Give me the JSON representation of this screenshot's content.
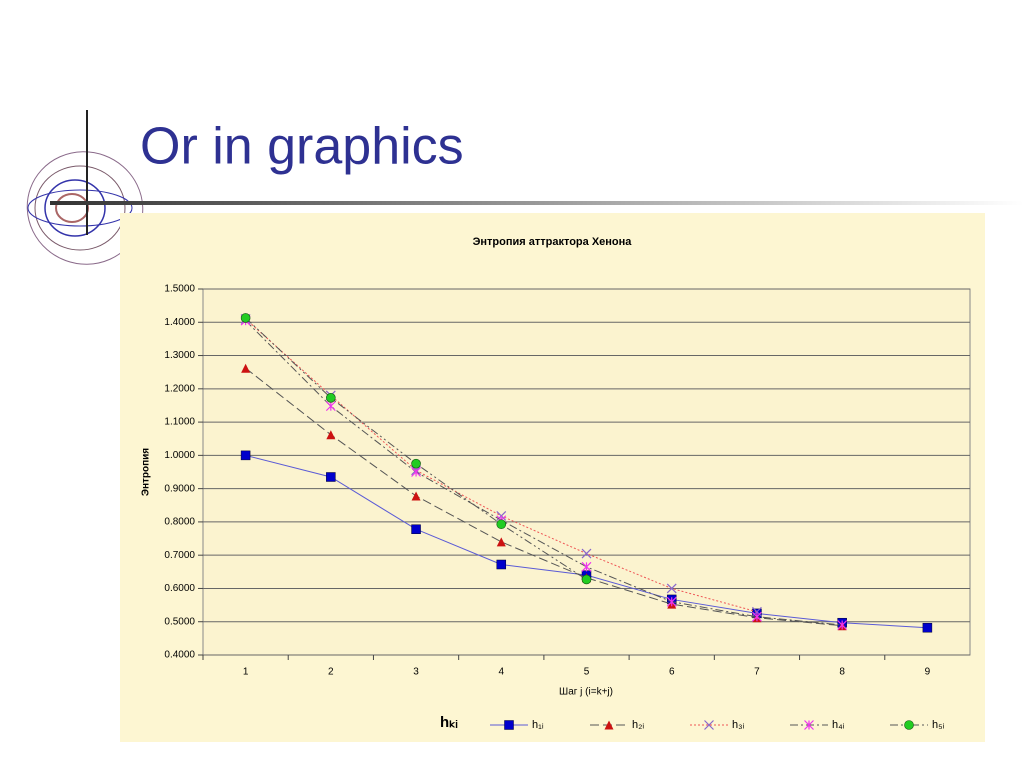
{
  "slide_title": "Or in graphics",
  "chart_data": {
    "type": "line",
    "title": "Энтропия аттрактора Хенона",
    "x_label": "Шаг j (i=k+j)",
    "y_label": "Энтропия",
    "categories": [
      "1",
      "2",
      "3",
      "4",
      "5",
      "6",
      "7",
      "8",
      "9"
    ],
    "ylim": [
      0.4,
      1.5
    ],
    "yticks": [
      {
        "value": 0.4,
        "label": "0.4000"
      },
      {
        "value": 0.5,
        "label": "0.5000"
      },
      {
        "value": 0.6,
        "label": "0.6000"
      },
      {
        "value": 0.7,
        "label": "0.7000"
      },
      {
        "value": 0.8,
        "label": "0.8000"
      },
      {
        "value": 0.9,
        "label": "0.9000"
      },
      {
        "value": 1.0,
        "label": "1.0000"
      },
      {
        "value": 1.1,
        "label": "1.1000"
      },
      {
        "value": 1.2,
        "label": "1.2000"
      },
      {
        "value": 1.3,
        "label": "1.3000"
      },
      {
        "value": 1.4,
        "label": "1.4000"
      },
      {
        "value": 1.5,
        "label": "1.5000"
      }
    ],
    "grid": true,
    "legend_title": "hₖᵢ",
    "legend_position": "bottom",
    "series": [
      {
        "name": "h₁ᵢ",
        "color": "#5a5ad6",
        "marker": "square",
        "marker_color": "#0000cc",
        "dash": "solid",
        "values": [
          1.0,
          0.935,
          0.778,
          0.672,
          0.64,
          0.567,
          0.525,
          0.497,
          0.482
        ]
      },
      {
        "name": "h₂ᵢ",
        "color": "#555555",
        "marker": "triangle",
        "marker_color": "#cc1111",
        "dash": "dashed",
        "values": [
          1.262,
          1.062,
          0.878,
          0.74,
          0.632,
          0.553,
          0.512,
          0.488,
          null
        ]
      },
      {
        "name": "h₃ᵢ",
        "color": "#ee5555",
        "marker": "cross",
        "marker_color": "#8866cc",
        "dash": "dotted",
        "values": [
          1.41,
          1.18,
          0.955,
          0.818,
          0.705,
          0.6,
          0.53,
          null,
          null
        ]
      },
      {
        "name": "h₄ᵢ",
        "color": "#555555",
        "marker": "star",
        "marker_color": "#ee33ee",
        "dash": "dashdot",
        "values": [
          1.405,
          1.148,
          0.95,
          0.805,
          0.665,
          0.56,
          0.515,
          0.49,
          null
        ]
      },
      {
        "name": "h₅ᵢ",
        "color": "#555555",
        "marker": "circle",
        "marker_color": "#22cc22",
        "dash": "dashdotdot",
        "values": [
          1.413,
          1.173,
          0.975,
          0.793,
          0.627,
          null,
          null,
          null,
          null
        ]
      }
    ]
  }
}
